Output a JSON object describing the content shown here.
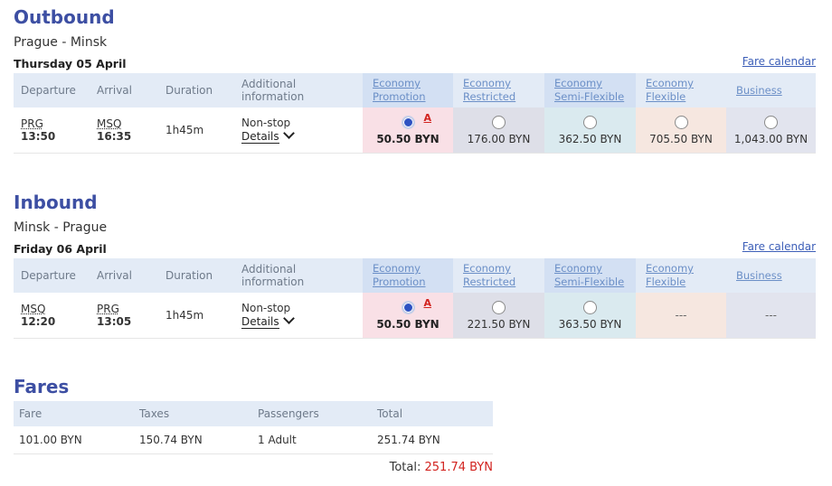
{
  "outbound": {
    "heading": "Outbound",
    "route": "Prague - Minsk",
    "date": "Thursday 05 April",
    "fare_calendar": "Fare calendar",
    "columns": {
      "departure": "Departure",
      "arrival": "Arrival",
      "duration": "Duration",
      "info": "Additional information"
    },
    "fare_classes": [
      "Economy Promotion",
      "Economy Restricted",
      "Economy Semi-Flexible",
      "Economy Flexible",
      "Business"
    ],
    "flight": {
      "dep_code": "PRG",
      "dep_time": "13:50",
      "arr_code": "MSQ",
      "arr_time": "16:35",
      "duration": "1h45m",
      "stops": "Non-stop",
      "details": "Details",
      "prices": [
        "50.50 BYN",
        "176.00 BYN",
        "362.50 BYN",
        "705.50 BYN",
        "1,043.00 BYN"
      ],
      "selected_index": 0,
      "flag": "A"
    }
  },
  "inbound": {
    "heading": "Inbound",
    "route": "Minsk - Prague",
    "date": "Friday 06 April",
    "fare_calendar": "Fare calendar",
    "columns": {
      "departure": "Departure",
      "arrival": "Arrival",
      "duration": "Duration",
      "info": "Additional information"
    },
    "fare_classes": [
      "Economy Promotion",
      "Economy Restricted",
      "Economy Semi-Flexible",
      "Economy Flexible",
      "Business"
    ],
    "flight": {
      "dep_code": "MSQ",
      "dep_time": "12:20",
      "arr_code": "PRG",
      "arr_time": "13:05",
      "duration": "1h45m",
      "stops": "Non-stop",
      "details": "Details",
      "prices": [
        "50.50 BYN",
        "221.50 BYN",
        "363.50 BYN",
        "---",
        "---"
      ],
      "selected_index": 0,
      "flag": "A"
    }
  },
  "fares": {
    "heading": "Fares",
    "columns": {
      "fare": "Fare",
      "taxes": "Taxes",
      "passengers": "Passengers",
      "total": "Total"
    },
    "row": {
      "fare": "101.00 BYN",
      "taxes": "150.74 BYN",
      "passengers": "1 Adult",
      "total": "251.74 BYN"
    },
    "total_label": "Total:",
    "total_amount": "251.74 BYN"
  },
  "colors": {
    "heading": "#3d4fa3",
    "accent_red": "#d2231f",
    "selected_radio": "#2e52c2"
  },
  "icons": {
    "details_toggle": "chevron-down-icon",
    "fare_flag": "availability-flag-icon"
  }
}
